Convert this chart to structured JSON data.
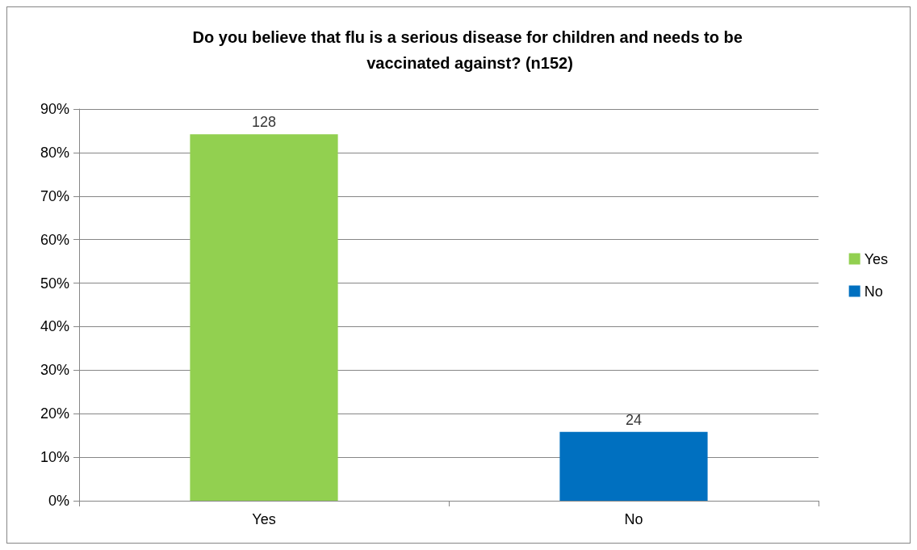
{
  "chart_data": {
    "type": "bar",
    "title": "Do you believe that flu is a serious disease for children and needs to be vaccinated against? (n152)",
    "categories": [
      "Yes",
      "No"
    ],
    "series": [
      {
        "name": "Yes",
        "color": "#92d050",
        "values": [
          84.2,
          null
        ]
      },
      {
        "name": "No",
        "color": "#0070c0",
        "values": [
          null,
          15.8
        ]
      }
    ],
    "annotations": [
      {
        "text": "128",
        "x": "Yes",
        "y": 84.2
      },
      {
        "text": "24",
        "x": "No",
        "y": 15.8
      }
    ],
    "ylim": [
      0,
      90
    ],
    "yticks": [
      {
        "value": 0,
        "label": "0%"
      },
      {
        "value": 10,
        "label": "10%"
      },
      {
        "value": 20,
        "label": "20%"
      },
      {
        "value": 30,
        "label": "30%"
      },
      {
        "value": 40,
        "label": "40%"
      },
      {
        "value": 50,
        "label": "50%"
      },
      {
        "value": 60,
        "label": "60%"
      },
      {
        "value": 70,
        "label": "70%"
      },
      {
        "value": 80,
        "label": "80%"
      },
      {
        "value": 90,
        "label": "90%"
      }
    ],
    "grid": "y",
    "legend": "right"
  }
}
